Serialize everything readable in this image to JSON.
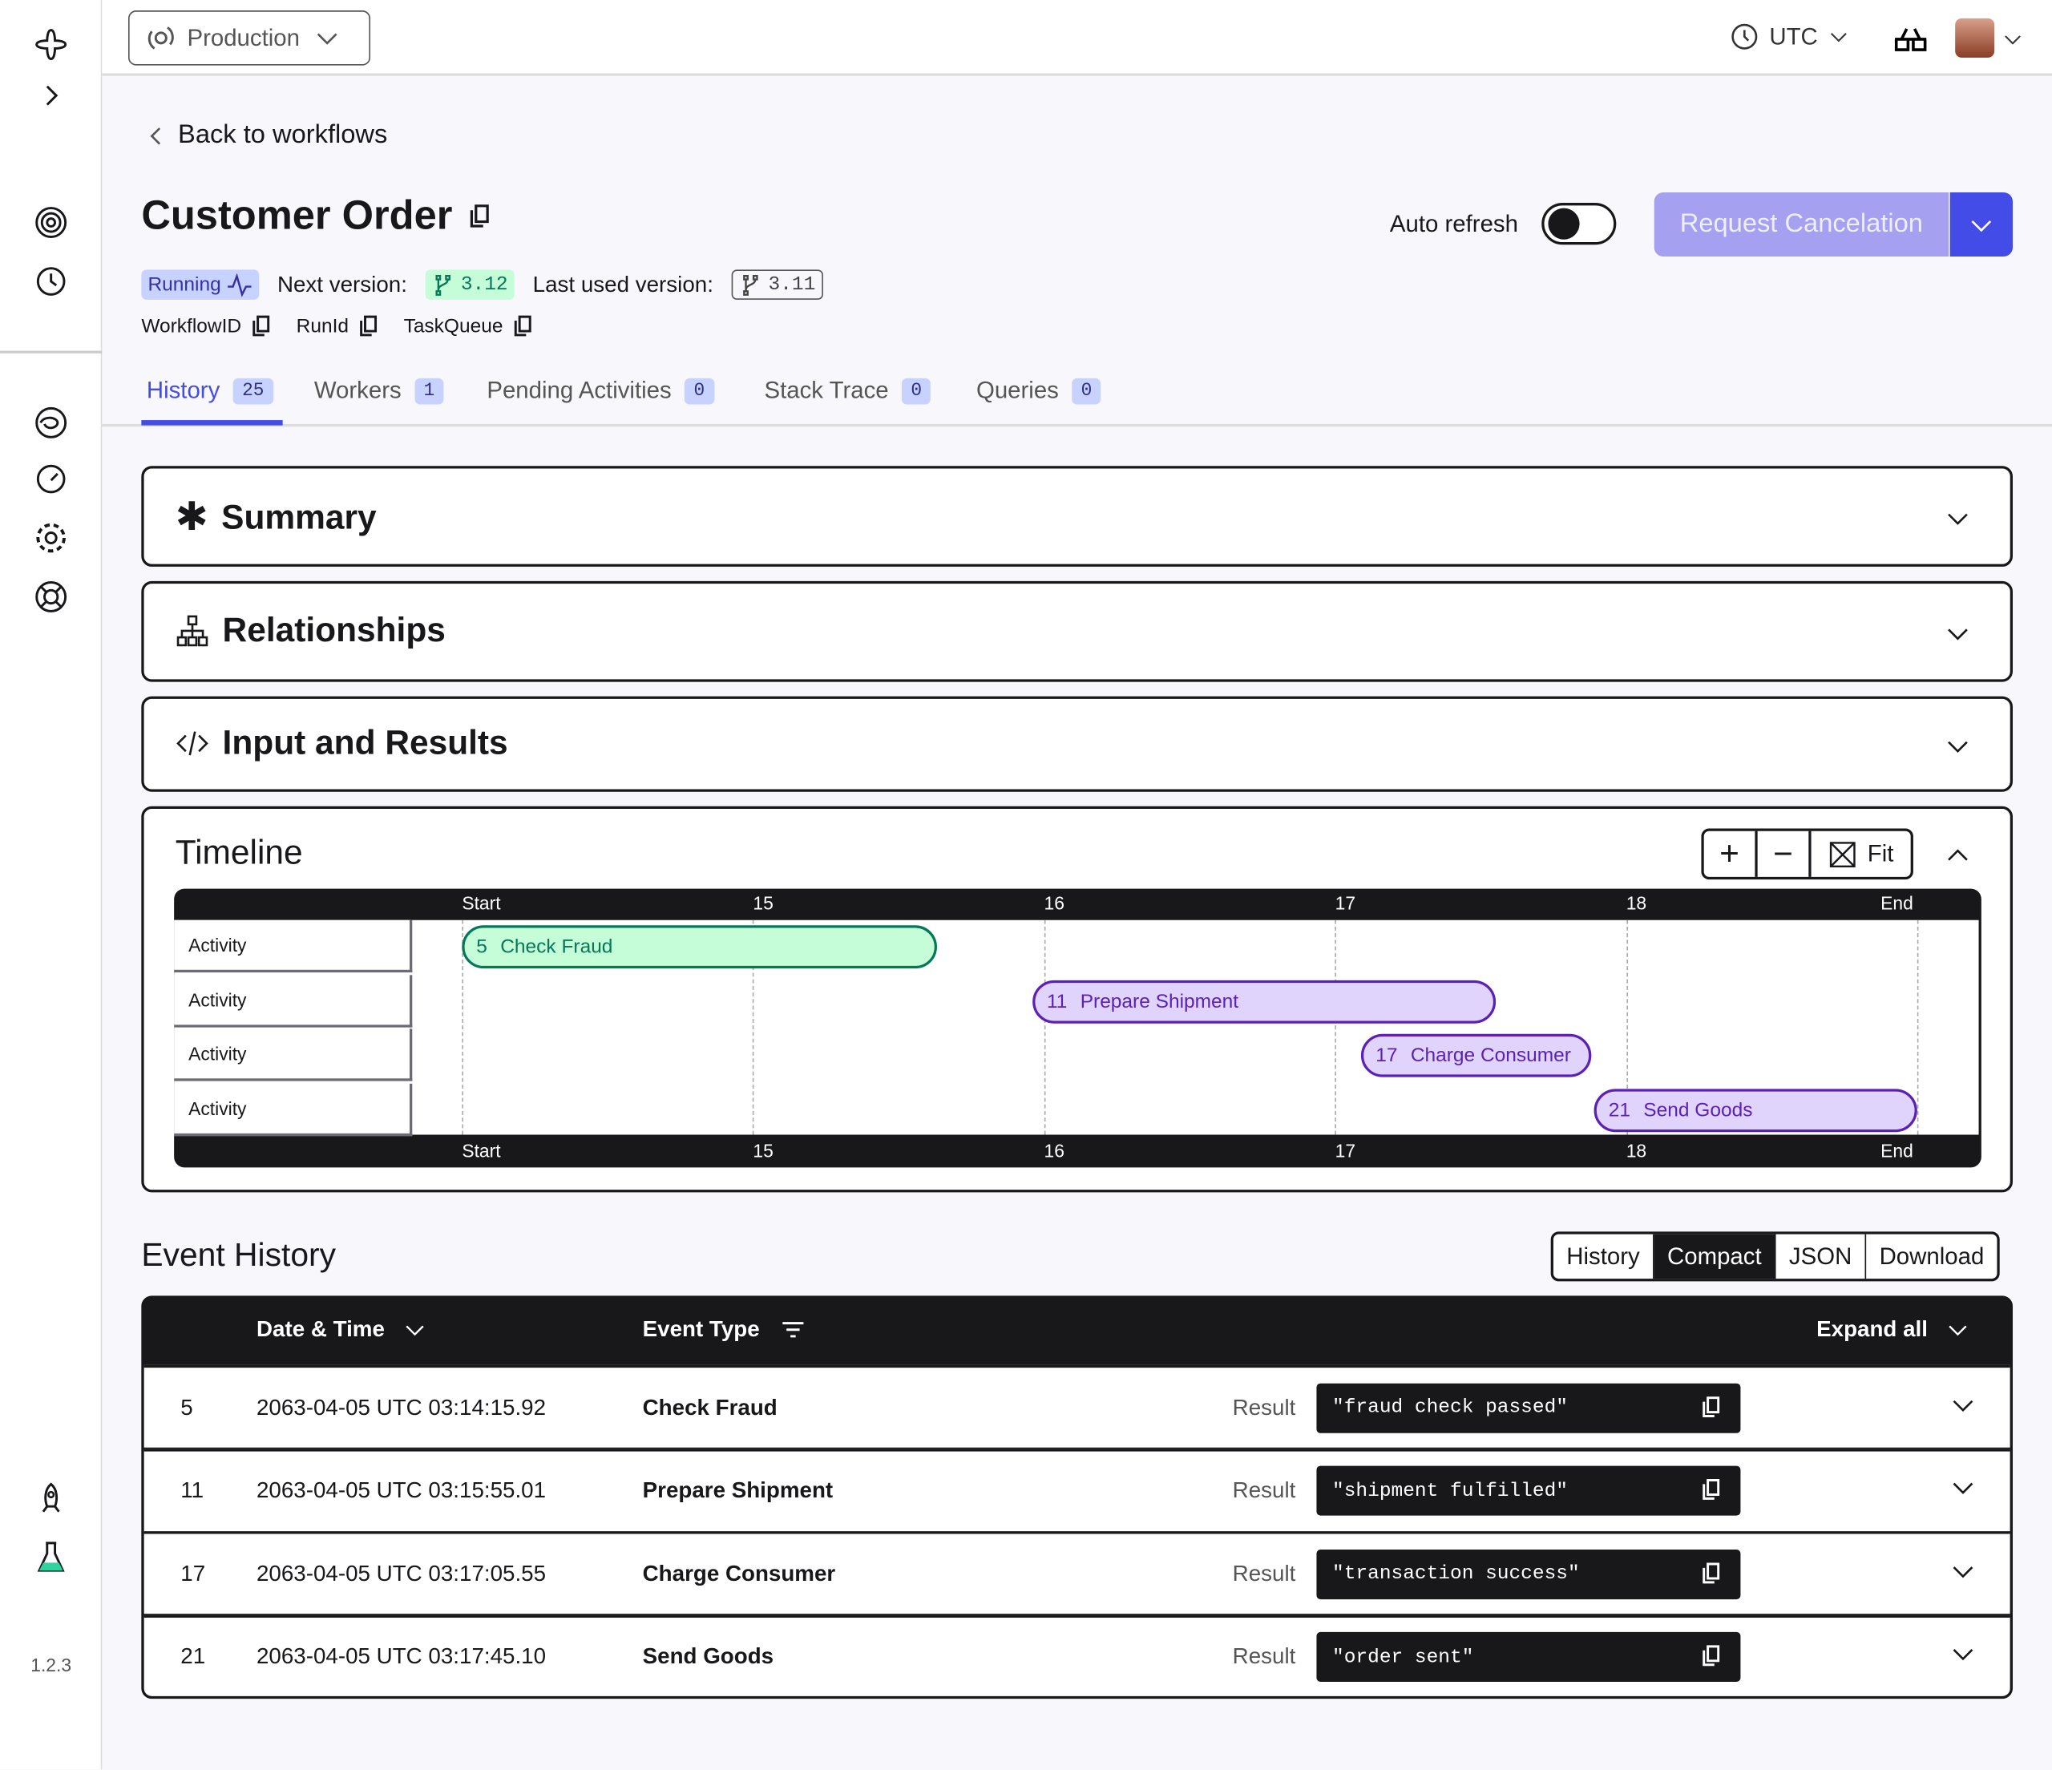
{
  "app": {
    "version": "1.2.3",
    "namespace": "Production",
    "timezone": "UTC"
  },
  "header": {
    "back_label": "Back to workflows",
    "title": "Customer Order",
    "status": "Running",
    "next_version_label": "Next version:",
    "next_version": "3.12",
    "last_version_label": "Last used version:",
    "last_version": "3.11",
    "ids": [
      "WorkflowID",
      "RunId",
      "TaskQueue"
    ],
    "auto_refresh_label": "Auto refresh",
    "auto_refresh_on": false,
    "cancel_label": "Request Cancelation"
  },
  "tabs": [
    {
      "label": "History",
      "count": "25",
      "active": true
    },
    {
      "label": "Workers",
      "count": "1"
    },
    {
      "label": "Pending Activities",
      "count": "0"
    },
    {
      "label": "Stack Trace",
      "count": "0"
    },
    {
      "label": "Queries",
      "count": "0"
    }
  ],
  "sections": {
    "summary": "Summary",
    "relationships": "Relationships",
    "input_results": "Input and Results",
    "timeline": "Timeline"
  },
  "timeline_controls": {
    "fit": "Fit"
  },
  "chart_data": {
    "type": "gantt",
    "ticks": [
      "Start",
      "15",
      "16",
      "17",
      "18",
      "End"
    ],
    "xlim": [
      14,
      19
    ],
    "rows": [
      "Activity",
      "Activity",
      "Activity",
      "Activity"
    ],
    "bars": [
      {
        "id": "5",
        "name": "Check Fraud",
        "start": 14.0,
        "end": 15.63,
        "color": "#047857",
        "fill": "#c6fdd9"
      },
      {
        "id": "11",
        "name": "Prepare Shipment",
        "start": 15.96,
        "end": 17.55,
        "color": "#5b21b6",
        "fill": "#e0d4fd"
      },
      {
        "id": "17",
        "name": "Charge Consumer",
        "start": 17.09,
        "end": 17.88,
        "color": "#5b21b6",
        "fill": "#e0d4fd"
      },
      {
        "id": "21",
        "name": "Send Goods",
        "start": 17.89,
        "end": 19.0,
        "color": "#5b21b6",
        "fill": "#e0d4fd"
      }
    ]
  },
  "event_history": {
    "title": "Event  History",
    "views": [
      "History",
      "Compact",
      "JSON",
      "Download"
    ],
    "active_view": "Compact",
    "columns": {
      "date": "Date & Time",
      "type": "Event Type",
      "expand": "Expand all"
    },
    "result_label": "Result",
    "rows": [
      {
        "id": "5",
        "date": "2063-04-05 UTC 03:14:15.92",
        "type": "Check Fraud",
        "result": "\"fraud check passed\""
      },
      {
        "id": "11",
        "date": "2063-04-05 UTC 03:15:55.01",
        "type": "Prepare Shipment",
        "result": "\"shipment fulfilled\""
      },
      {
        "id": "17",
        "date": "2063-04-05 UTC 03:17:05.55",
        "type": "Charge Consumer",
        "result": "\"transaction success\""
      },
      {
        "id": "21",
        "date": "2063-04-05 UTC 03:17:45.10",
        "type": "Send Goods",
        "result": "\"order sent\""
      }
    ]
  },
  "colors": {
    "accent": "#444ce7",
    "accent_light": "#a5a0f0",
    "dark": "#18181b"
  }
}
